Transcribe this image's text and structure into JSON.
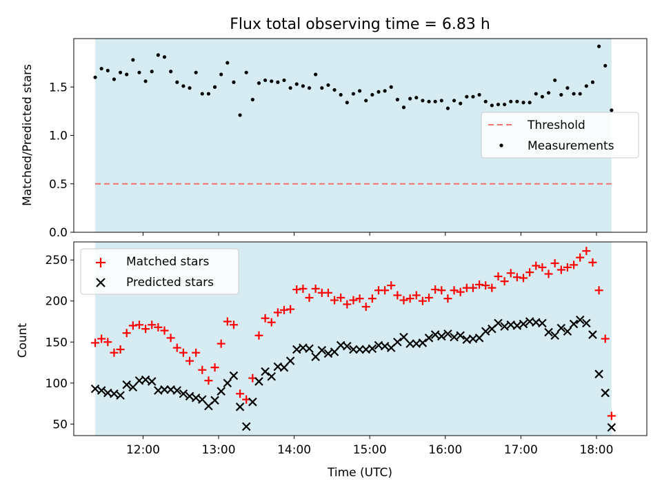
{
  "chart_data": [
    {
      "type": "scatter",
      "title": "Flux total observing time = 6.83 h",
      "xlabel": "",
      "ylabel": "Matched/Predicted stars",
      "xlim": [
        "11:05",
        "18:40"
      ],
      "ylim": [
        0,
        2.0
      ],
      "yticks": [
        0.0,
        0.5,
        1.0,
        1.5
      ],
      "yticklabels": [
        "0.0",
        "0.5",
        "1.0",
        "1.5"
      ],
      "shaded_span": [
        "11:22",
        "18:12"
      ],
      "shade_color": "#add8e6",
      "legend": {
        "placement": "center-right",
        "entries": [
          "Threshold",
          "Measurements"
        ]
      },
      "series": [
        {
          "name": "Threshold",
          "kind": "dashed-line",
          "color": "#f07070",
          "x": [
            "11:22",
            "18:12"
          ],
          "values": [
            0.5,
            0.5
          ]
        },
        {
          "name": "Measurements",
          "kind": "scatter",
          "marker": "dot",
          "color": "#000000",
          "x": [
            "11:22",
            "11:27",
            "11:32",
            "11:37",
            "11:42",
            "11:47",
            "11:52",
            "11:57",
            "12:02",
            "12:07",
            "12:12",
            "12:17",
            "12:22",
            "12:27",
            "12:32",
            "12:37",
            "12:42",
            "12:47",
            "12:52",
            "12:57",
            "13:02",
            "13:07",
            "13:12",
            "13:17",
            "13:22",
            "13:27",
            "13:32",
            "13:37",
            "13:42",
            "13:47",
            "13:52",
            "13:57",
            "14:02",
            "14:07",
            "14:12",
            "14:17",
            "14:22",
            "14:27",
            "14:32",
            "14:37",
            "14:42",
            "14:47",
            "14:52",
            "14:57",
            "15:02",
            "15:07",
            "15:12",
            "15:17",
            "15:22",
            "15:27",
            "15:32",
            "15:37",
            "15:42",
            "15:47",
            "15:52",
            "15:57",
            "16:02",
            "16:07",
            "16:12",
            "16:17",
            "16:22",
            "16:27",
            "16:32",
            "16:37",
            "16:42",
            "16:47",
            "16:52",
            "16:57",
            "17:02",
            "17:07",
            "17:12",
            "17:17",
            "17:22",
            "17:27",
            "17:32",
            "17:37",
            "17:42",
            "17:47",
            "17:52",
            "17:57",
            "18:02",
            "18:07",
            "18:12"
          ],
          "values": [
            1.6,
            1.69,
            1.67,
            1.58,
            1.65,
            1.63,
            1.78,
            1.65,
            1.56,
            1.66,
            1.83,
            1.81,
            1.66,
            1.55,
            1.51,
            1.49,
            1.65,
            1.43,
            1.43,
            1.5,
            1.63,
            1.75,
            1.55,
            1.21,
            1.65,
            1.37,
            1.54,
            1.57,
            1.56,
            1.55,
            1.57,
            1.49,
            1.53,
            1.51,
            1.49,
            1.63,
            1.49,
            1.52,
            1.47,
            1.42,
            1.34,
            1.43,
            1.46,
            1.36,
            1.42,
            1.45,
            1.46,
            1.5,
            1.37,
            1.29,
            1.38,
            1.39,
            1.36,
            1.35,
            1.35,
            1.36,
            1.28,
            1.36,
            1.33,
            1.4,
            1.4,
            1.42,
            1.35,
            1.31,
            1.32,
            1.32,
            1.35,
            1.35,
            1.34,
            1.34,
            1.43,
            1.4,
            1.44,
            1.57,
            1.42,
            1.49,
            1.43,
            1.43,
            1.51,
            1.55,
            1.92,
            1.72,
            1.26
          ]
        }
      ]
    },
    {
      "type": "scatter",
      "title": "",
      "xlabel": "Time (UTC)",
      "ylabel": "Count",
      "xlim": [
        "11:05",
        "18:40"
      ],
      "ylim": [
        36,
        272
      ],
      "xticks": [
        "12:00",
        "13:00",
        "14:00",
        "15:00",
        "16:00",
        "17:00",
        "18:00"
      ],
      "yticks": [
        50,
        100,
        150,
        200,
        250
      ],
      "yticklabels": [
        "50",
        "100",
        "150",
        "200",
        "250"
      ],
      "shaded_span": [
        "11:22",
        "18:12"
      ],
      "shade_color": "#add8e6",
      "legend": {
        "placement": "top-left",
        "entries": [
          "Matched stars",
          "Predicted stars"
        ]
      },
      "series": [
        {
          "name": "Matched stars",
          "marker": "plus",
          "color": "#ff0000",
          "x": [
            "11:22",
            "11:27",
            "11:32",
            "11:37",
            "11:42",
            "11:47",
            "11:52",
            "11:57",
            "12:02",
            "12:07",
            "12:12",
            "12:17",
            "12:22",
            "12:27",
            "12:32",
            "12:37",
            "12:42",
            "12:47",
            "12:52",
            "12:57",
            "13:02",
            "13:07",
            "13:12",
            "13:17",
            "13:22",
            "13:27",
            "13:32",
            "13:37",
            "13:42",
            "13:47",
            "13:52",
            "13:57",
            "14:02",
            "14:07",
            "14:12",
            "14:17",
            "14:22",
            "14:27",
            "14:32",
            "14:37",
            "14:42",
            "14:47",
            "14:52",
            "14:57",
            "15:02",
            "15:07",
            "15:12",
            "15:17",
            "15:22",
            "15:27",
            "15:32",
            "15:37",
            "15:42",
            "15:47",
            "15:52",
            "15:57",
            "16:02",
            "16:07",
            "16:12",
            "16:17",
            "16:22",
            "16:27",
            "16:32",
            "16:37",
            "16:42",
            "16:47",
            "16:52",
            "16:57",
            "17:02",
            "17:07",
            "17:12",
            "17:17",
            "17:22",
            "17:27",
            "17:32",
            "17:37",
            "17:42",
            "17:47",
            "17:52",
            "17:57",
            "18:02",
            "18:07",
            "18:12"
          ],
          "values": [
            149,
            154,
            150,
            137,
            141,
            161,
            170,
            171,
            166,
            171,
            168,
            164,
            155,
            143,
            137,
            127,
            137,
            116,
            103,
            119,
            148,
            175,
            171,
            87,
            80,
            106,
            158,
            179,
            174,
            186,
            189,
            190,
            214,
            215,
            204,
            215,
            210,
            210,
            201,
            204,
            196,
            201,
            203,
            193,
            203,
            213,
            213,
            219,
            207,
            201,
            203,
            207,
            200,
            204,
            214,
            213,
            203,
            213,
            211,
            216,
            216,
            220,
            219,
            216,
            230,
            224,
            234,
            229,
            228,
            235,
            243,
            241,
            233,
            246,
            238,
            241,
            244,
            253,
            261,
            247,
            213,
            154,
            60
          ]
        },
        {
          "name": "Predicted stars",
          "marker": "x",
          "color": "#000000",
          "x": [
            "11:22",
            "11:27",
            "11:32",
            "11:37",
            "11:42",
            "11:47",
            "11:52",
            "11:57",
            "12:02",
            "12:07",
            "12:12",
            "12:17",
            "12:22",
            "12:27",
            "12:32",
            "12:37",
            "12:42",
            "12:47",
            "12:52",
            "12:57",
            "13:02",
            "13:07",
            "13:12",
            "13:17",
            "13:22",
            "13:27",
            "13:32",
            "13:37",
            "13:42",
            "13:47",
            "13:52",
            "13:57",
            "14:02",
            "14:07",
            "14:12",
            "14:17",
            "14:22",
            "14:27",
            "14:32",
            "14:37",
            "14:42",
            "14:47",
            "14:52",
            "14:57",
            "15:02",
            "15:07",
            "15:12",
            "15:17",
            "15:22",
            "15:27",
            "15:32",
            "15:37",
            "15:42",
            "15:47",
            "15:52",
            "15:57",
            "16:02",
            "16:07",
            "16:12",
            "16:17",
            "16:22",
            "16:27",
            "16:32",
            "16:37",
            "16:42",
            "16:47",
            "16:52",
            "16:57",
            "17:02",
            "17:07",
            "17:12",
            "17:17",
            "17:22",
            "17:27",
            "17:32",
            "17:37",
            "17:42",
            "17:47",
            "17:52",
            "17:57",
            "18:02",
            "18:07",
            "18:12"
          ],
          "values": [
            93,
            91,
            88,
            87,
            85,
            98,
            95,
            103,
            104,
            102,
            91,
            92,
            92,
            91,
            87,
            84,
            82,
            80,
            72,
            79,
            90,
            100,
            109,
            71,
            47,
            77,
            102,
            114,
            108,
            120,
            119,
            127,
            141,
            143,
            142,
            132,
            140,
            136,
            138,
            146,
            145,
            141,
            141,
            141,
            142,
            146,
            145,
            143,
            150,
            156,
            148,
            148,
            149,
            155,
            159,
            157,
            160,
            156,
            158,
            153,
            154,
            155,
            163,
            166,
            173,
            169,
            171,
            170,
            172,
            175,
            174,
            173,
            162,
            158,
            167,
            163,
            172,
            177,
            173,
            159,
            111,
            88,
            46
          ]
        }
      ]
    }
  ]
}
